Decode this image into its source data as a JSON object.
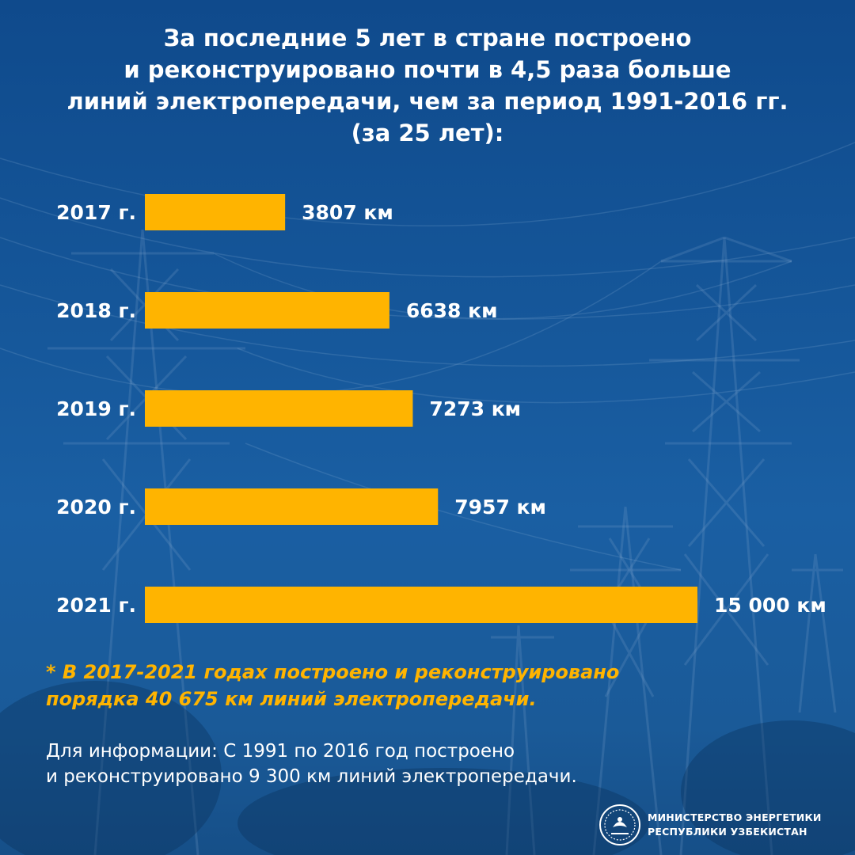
{
  "title_lines": [
    "За последние 5 лет в стране построено",
    "и реконструировано почти в 4,5 раза больше",
    "линий электропередачи, чем за период 1991-2016 гг.",
    "(за 25 лет):"
  ],
  "chart_data": {
    "type": "bar",
    "orientation": "horizontal",
    "categories": [
      "2017 г.",
      "2018 г.",
      "2019 г.",
      "2020 г.",
      "2021 г."
    ],
    "values": [
      3807,
      6638,
      7273,
      7957,
      15000
    ],
    "value_labels": [
      "3807 км",
      "6638 км",
      "7273 км",
      "7957 км",
      "15 000 км"
    ],
    "unit": "км",
    "bar_color": "#ffb400",
    "xlim": [
      0,
      15000
    ]
  },
  "footnote_lines": [
    "* В 2017-2021 годах построено и реконструировано",
    "порядка 40 675 км линий электропередачи."
  ],
  "info_lines": [
    "Для информации: С 1991 по 2016 год построено",
    "и реконструировано 9 300 км линий электропередачи."
  ],
  "ministry": {
    "line1": "МИНИСТЕРСТВО ЭНЕРГЕТИКИ",
    "line2": "РЕСПУБЛИКИ УЗБЕКИСТАН"
  },
  "colors": {
    "background": "#155699",
    "accent": "#ffb400",
    "text": "#ffffff"
  }
}
